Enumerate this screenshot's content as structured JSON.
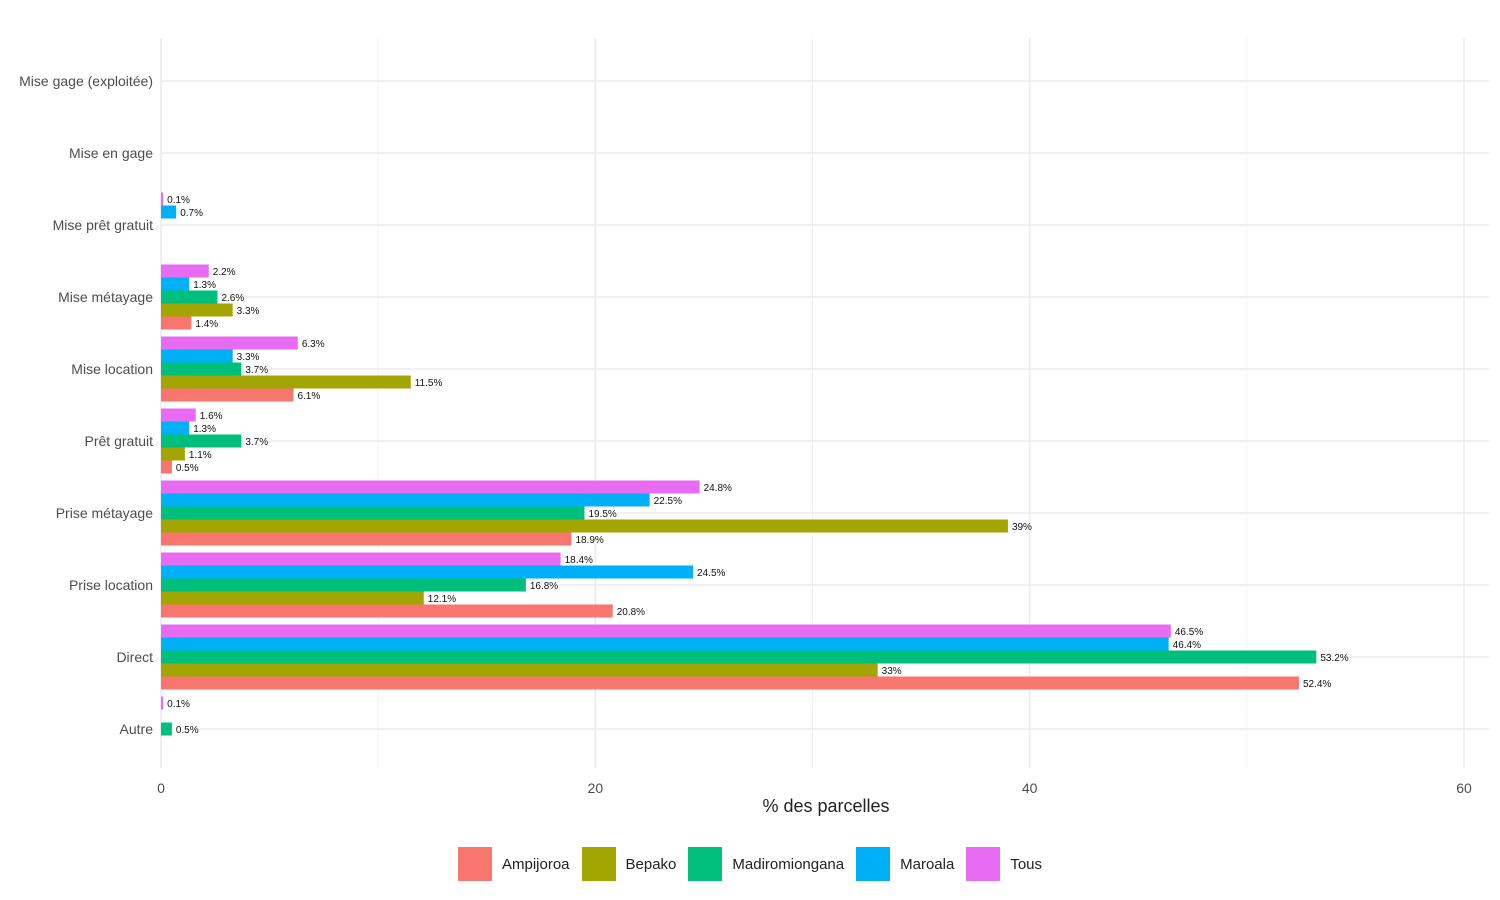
{
  "chart_data": {
    "type": "bar",
    "orientation": "horizontal",
    "xlabel": "% des parcelles",
    "ylabel": "",
    "xlim": [
      0,
      61.5
    ],
    "xticks": [
      0,
      20,
      40,
      60
    ],
    "grid": true,
    "legend_position": "bottom",
    "categories": [
      "Mise gage (exploitée)",
      "Mise en gage",
      "Mise prêt gratuit",
      "Mise métayage",
      "Mise location",
      "Prêt gratuit",
      "Prise métayage",
      "Prise location",
      "Direct",
      "Autre"
    ],
    "series": [
      {
        "name": "Ampijoroa",
        "color": "#F8766D",
        "values": [
          null,
          null,
          null,
          1.4,
          6.1,
          0.5,
          18.9,
          20.8,
          52.4,
          null
        ],
        "labels": [
          null,
          null,
          null,
          "1.4%",
          "6.1%",
          "0.5%",
          "18.9%",
          "20.8%",
          "52.4%",
          null
        ]
      },
      {
        "name": "Bepako",
        "color": "#A3A500",
        "values": [
          null,
          null,
          null,
          3.3,
          11.5,
          1.1,
          39,
          12.1,
          33,
          null
        ],
        "labels": [
          null,
          null,
          null,
          "3.3%",
          "11.5%",
          "1.1%",
          "39%",
          "12.1%",
          "33%",
          null
        ]
      },
      {
        "name": "Madiromiongana",
        "color": "#00BF7D",
        "values": [
          null,
          null,
          null,
          2.6,
          3.7,
          3.7,
          19.5,
          16.8,
          53.2,
          0.5
        ],
        "labels": [
          null,
          null,
          null,
          "2.6%",
          "3.7%",
          "3.7%",
          "19.5%",
          "16.8%",
          "53.2%",
          "0.5%"
        ]
      },
      {
        "name": "Maroala",
        "color": "#00B0F6",
        "values": [
          null,
          null,
          0.7,
          1.3,
          3.3,
          1.3,
          22.5,
          24.5,
          46.4,
          null
        ],
        "labels": [
          null,
          null,
          "0.7%",
          "1.3%",
          "3.3%",
          "1.3%",
          "22.5%",
          "24.5%",
          "46.4%",
          null
        ]
      },
      {
        "name": "Tous",
        "color": "#E76BF3",
        "values": [
          null,
          null,
          0.1,
          2.2,
          6.3,
          1.6,
          24.8,
          18.4,
          46.5,
          0.1
        ],
        "labels": [
          null,
          null,
          "0.1%",
          "2.2%",
          "6.3%",
          "1.6%",
          "24.8%",
          "18.4%",
          "46.5%",
          "0.1%"
        ]
      }
    ]
  }
}
